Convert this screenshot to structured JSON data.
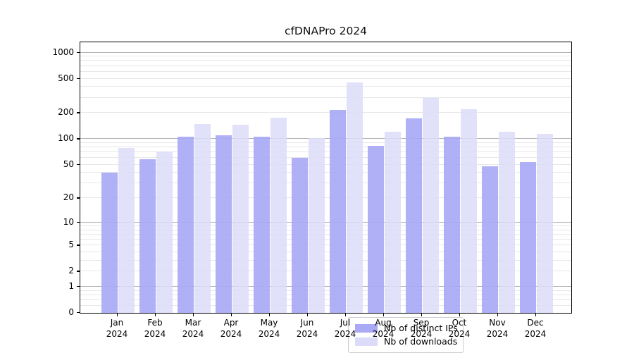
{
  "title": "cfDNAPro 2024",
  "chart_data": {
    "type": "bar",
    "title": "cfDNAPro 2024",
    "categories": [
      "Jan 2024",
      "Feb 2024",
      "Mar 2024",
      "Apr 2024",
      "May 2024",
      "Jun 2024",
      "Jul 2024",
      "Aug 2024",
      "Sep 2024",
      "Oct 2024",
      "Nov 2024",
      "Dec 2024"
    ],
    "x_tick_months": [
      "Jan",
      "Feb",
      "Mar",
      "Apr",
      "May",
      "Jun",
      "Jul",
      "Aug",
      "Sep",
      "Oct",
      "Nov",
      "Dec"
    ],
    "x_tick_year": "2024",
    "series": [
      {
        "name": "Nb of distinct IPs",
        "color": "#a9a9f6",
        "values": [
          40,
          58,
          107,
          110,
          107,
          60,
          217,
          83,
          172,
          106,
          48,
          54
        ]
      },
      {
        "name": "Nb of downloads",
        "color": "#dcdcf9",
        "values": [
          78,
          72,
          150,
          146,
          176,
          102,
          450,
          121,
          298,
          220,
          121,
          114
        ]
      }
    ],
    "yscale": "log1p",
    "y_ticks": [
      0,
      1,
      2,
      5,
      10,
      20,
      50,
      100,
      200,
      500,
      1000
    ],
    "y_tick_labels": [
      "0",
      "1",
      "2",
      "5",
      "10",
      "20",
      "50",
      "100",
      "200",
      "500",
      "1000"
    ],
    "ylim": [
      0,
      1320
    ],
    "grid": true,
    "grid_major_values": [
      1,
      10,
      100,
      1000
    ],
    "legend_position": "bottom-center",
    "xlabel": "",
    "ylabel": ""
  },
  "legend": {
    "items": [
      {
        "label": "Nb of distinct IPs",
        "color": "#a9a9f6"
      },
      {
        "label": "Nb of downloads",
        "color": "#dcdcf9"
      }
    ]
  }
}
